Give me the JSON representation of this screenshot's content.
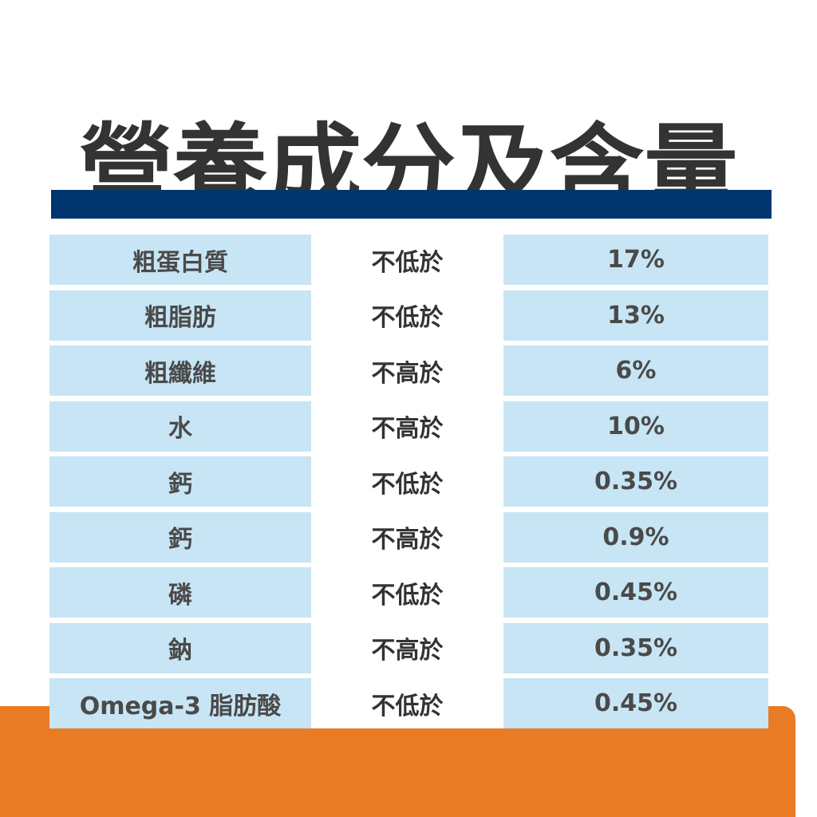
{
  "title": "營養成分及含量",
  "colors": {
    "navy": "#003670",
    "cell_bg": "#c7e5f4",
    "orange": "#e97b24",
    "text_dark": "#333333"
  },
  "rows": [
    {
      "name": "粗蛋白質",
      "condition": "不低於",
      "value": "17%"
    },
    {
      "name": "粗脂肪",
      "condition": "不低於",
      "value": "13%"
    },
    {
      "name": "粗纖維",
      "condition": "不高於",
      "value": "6%"
    },
    {
      "name": "水",
      "condition": "不高於",
      "value": "10%"
    },
    {
      "name": "鈣",
      "condition": "不低於",
      "value": "0.35%"
    },
    {
      "name": "鈣",
      "condition": "不高於",
      "value": "0.9%"
    },
    {
      "name": "磷",
      "condition": "不低於",
      "value": "0.45%"
    },
    {
      "name": "鈉",
      "condition": "不高於",
      "value": "0.35%"
    },
    {
      "name": "Omega-3 脂肪酸",
      "condition": "不低於",
      "value": "0.45%"
    }
  ]
}
